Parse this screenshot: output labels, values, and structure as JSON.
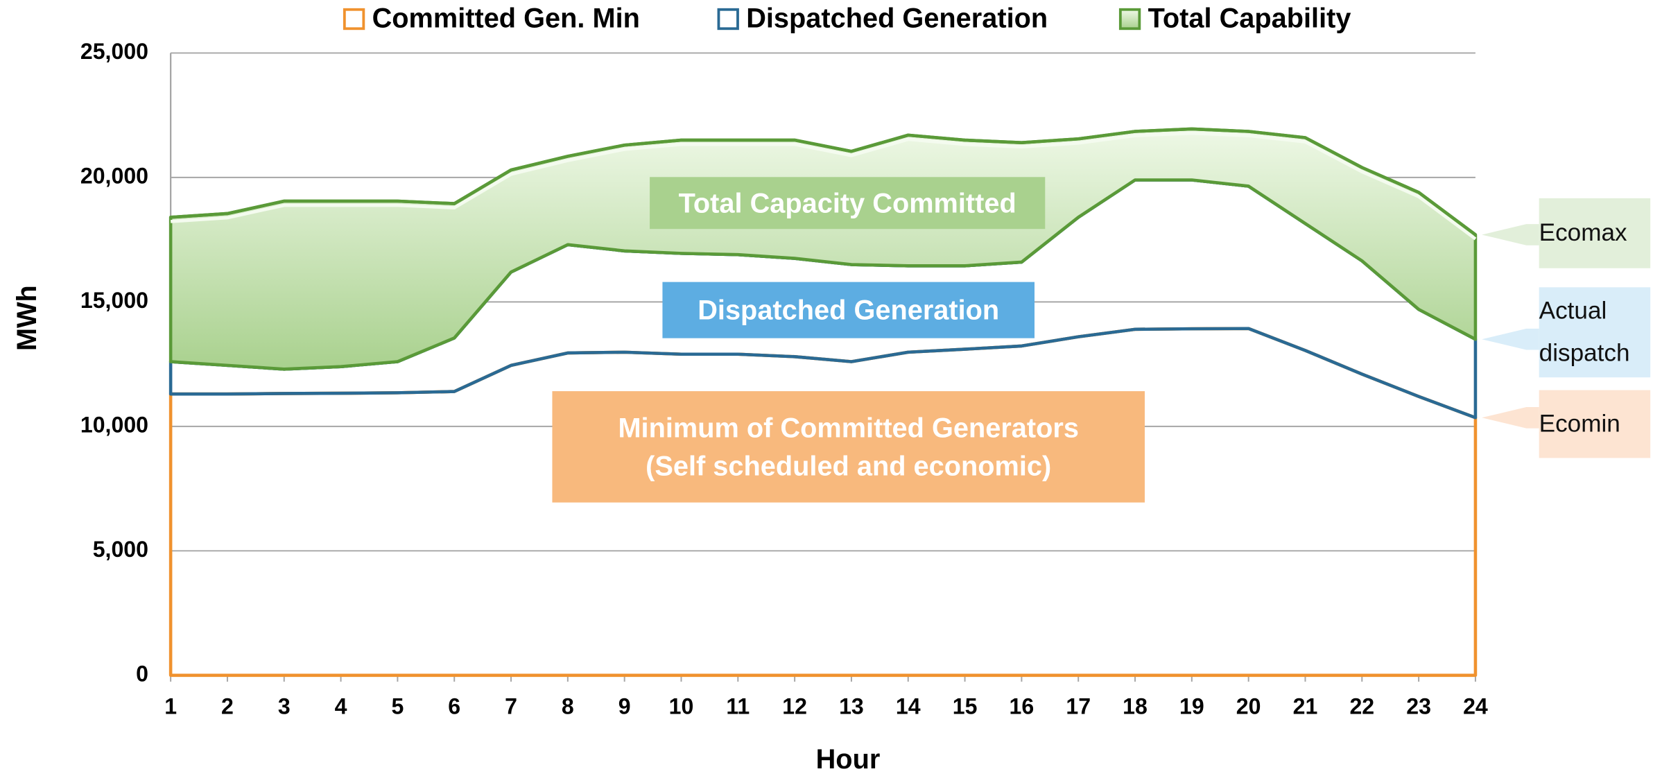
{
  "chart_data": {
    "type": "stacked-area",
    "xlabel": "Hour",
    "ylabel": "MWh",
    "x": [
      1,
      2,
      3,
      4,
      5,
      6,
      7,
      8,
      9,
      10,
      11,
      12,
      13,
      14,
      15,
      16,
      17,
      18,
      19,
      20,
      21,
      22,
      23,
      24
    ],
    "xlim": [
      1,
      24
    ],
    "xticks": [
      1,
      2,
      3,
      4,
      5,
      6,
      7,
      8,
      9,
      10,
      11,
      12,
      13,
      14,
      15,
      16,
      17,
      18,
      19,
      20,
      21,
      22,
      23,
      24
    ],
    "ylim": [
      0,
      25000
    ],
    "yticks": [
      0,
      {
        "value": 5000,
        "label": "5,000"
      },
      {
        "value": 10000,
        "label": "10,000"
      },
      {
        "value": 15000,
        "label": "15,000"
      },
      {
        "value": 20000,
        "label": "20,000"
      },
      {
        "value": 25000,
        "label": "25,000"
      }
    ],
    "grid": true,
    "legend": "top",
    "series": [
      {
        "name": "Committed Gen. Min",
        "color": "#f0922e",
        "fill": "none",
        "values": [
          11300,
          11300,
          11320,
          11330,
          11350,
          11400,
          12450,
          12950,
          12980,
          12900,
          12900,
          12800,
          12600,
          12980,
          13100,
          13230,
          13600,
          13900,
          13920,
          13930,
          13050,
          12100,
          11200,
          10350
        ]
      },
      {
        "name": "Dispatched Generation",
        "color": "#2a6a94",
        "fill": "none",
        "values": [
          1300,
          1150,
          980,
          1070,
          1250,
          2150,
          3750,
          4350,
          4070,
          4050,
          4000,
          3950,
          3900,
          3470,
          3350,
          3370,
          4800,
          6000,
          5980,
          5720,
          5100,
          4550,
          3500,
          3150
        ]
      },
      {
        "name": "Total Capability",
        "color": "#5a9a38",
        "fill": "#d3edbf",
        "values": [
          5800,
          6100,
          6750,
          6650,
          6450,
          5400,
          4100,
          3550,
          4250,
          4550,
          4600,
          4750,
          4550,
          5250,
          5050,
          4800,
          3150,
          1950,
          2050,
          2200,
          3450,
          3750,
          4700,
          4200
        ]
      }
    ],
    "annotations": [
      {
        "lines": [
          "Total Capacity Committed"
        ],
        "color": "#a9d18e"
      },
      {
        "lines": [
          "Dispatched Generation"
        ],
        "color": "#5dade2"
      },
      {
        "lines": [
          "Minimum of Committed Generators",
          "(Self scheduled and economic)"
        ],
        "color": "#f8b97d"
      }
    ],
    "callouts": [
      {
        "lines": [
          "Ecomax"
        ],
        "color": "#e2efda"
      },
      {
        "lines": [
          "Actual",
          "dispatch"
        ],
        "color": "#d9edf9"
      },
      {
        "lines": [
          "Ecomin"
        ],
        "color": "#fde4d2"
      }
    ]
  }
}
